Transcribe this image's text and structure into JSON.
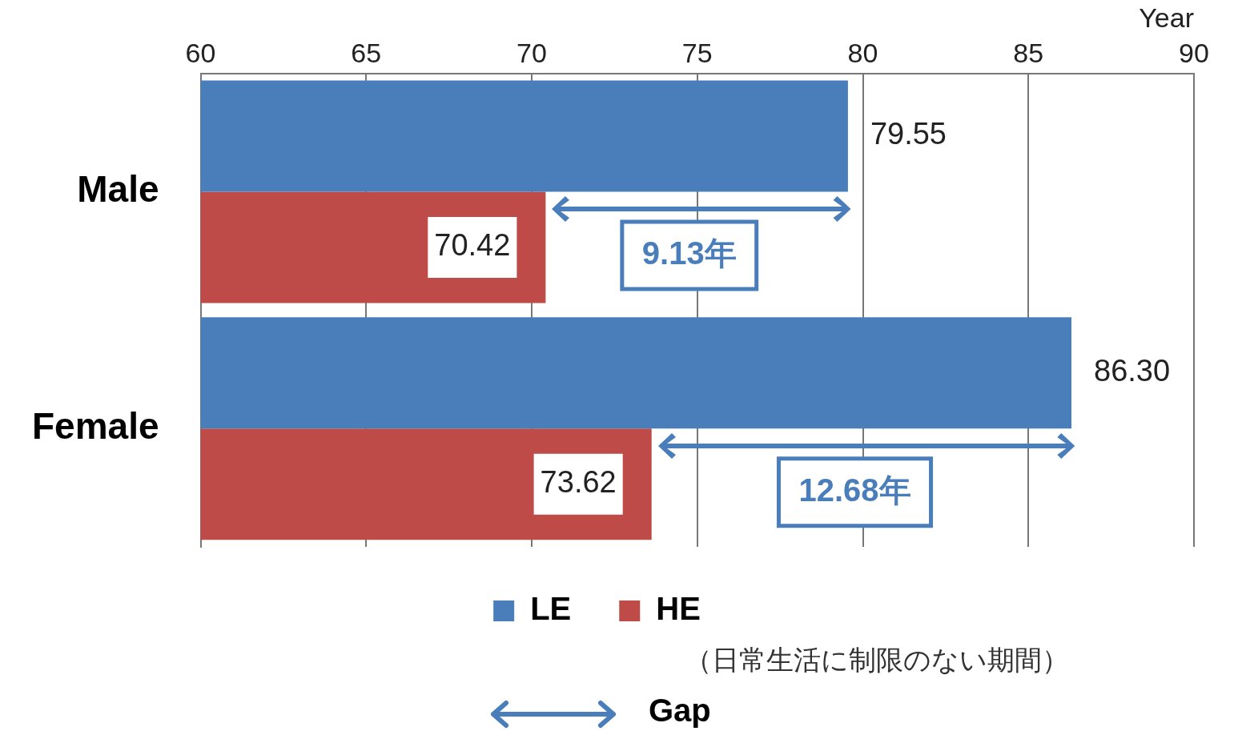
{
  "chart_data": {
    "type": "bar",
    "orientation": "horizontal",
    "xlabel": "Year",
    "categories": [
      "Male",
      "Female"
    ],
    "series": [
      {
        "name": "LE",
        "color": "#4a7ebb",
        "values": [
          79.55,
          86.3
        ],
        "value_labels": [
          "79.55",
          "86.30"
        ]
      },
      {
        "name": "HE",
        "color": "#be4b48",
        "values": [
          70.42,
          73.62
        ],
        "value_labels": [
          "70.42",
          "73.62"
        ]
      }
    ],
    "xlim": [
      60,
      90
    ],
    "xticks": [
      60,
      65,
      70,
      75,
      80,
      85,
      90
    ],
    "grid": "x",
    "legend": "bottom",
    "annotations": [
      {
        "text": "9.13年",
        "x": 75,
        "y": "Male"
      },
      {
        "text": "12.68年",
        "x": 80,
        "y": "Female"
      },
      "（日常生活に制限のない期間）",
      "Gap"
    ]
  }
}
